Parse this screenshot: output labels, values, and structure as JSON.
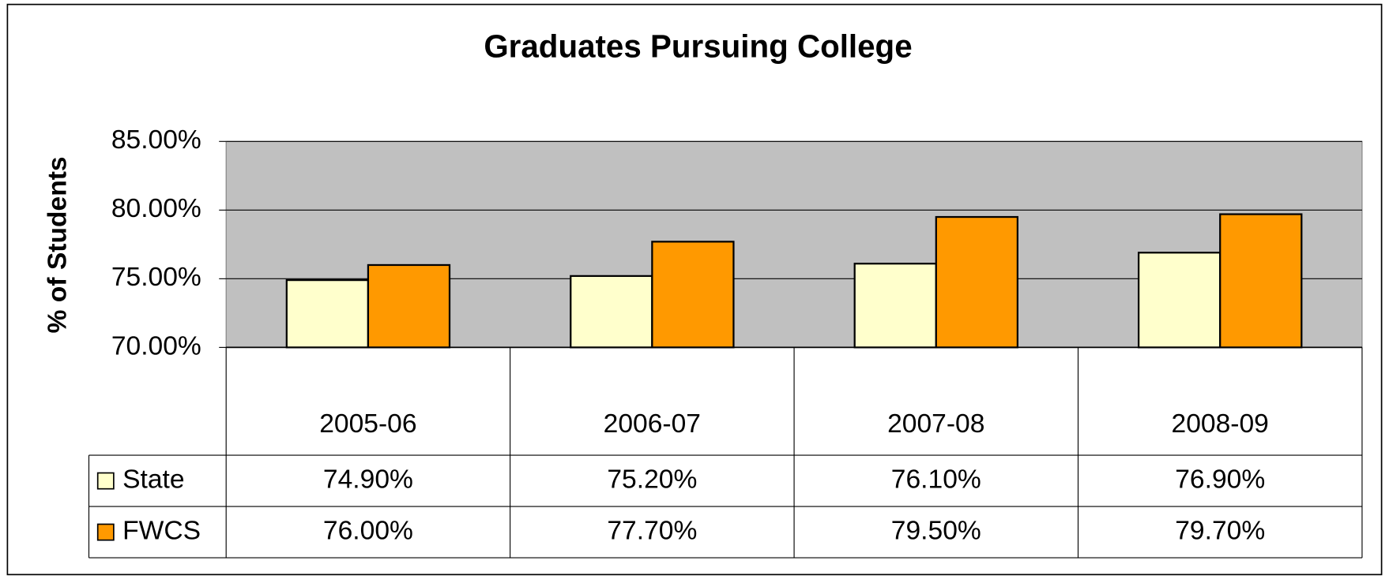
{
  "chart_data": {
    "type": "bar",
    "title": "Graduates Pursuing College",
    "y_label": "% of Students",
    "categories": [
      "2005-06",
      "2006-07",
      "2007-08",
      "2008-09"
    ],
    "series": [
      {
        "name": "State",
        "color": "#ffffcc",
        "values": [
          74.9,
          75.2,
          76.1,
          76.9
        ],
        "value_labels": [
          "74.90%",
          "75.20%",
          "76.10%",
          "76.90%"
        ]
      },
      {
        "name": "FWCS",
        "color": "#ff9900",
        "values": [
          76.0,
          77.7,
          79.5,
          79.7
        ],
        "value_labels": [
          "76.00%",
          "77.70%",
          "79.50%",
          "79.70%"
        ]
      }
    ],
    "ylim": [
      70,
      85
    ],
    "yticks": [
      {
        "value": 70,
        "label": "70.00%"
      },
      {
        "value": 75,
        "label": "75.00%"
      },
      {
        "value": 80,
        "label": "80.00%"
      },
      {
        "value": 85,
        "label": "85.00%"
      }
    ],
    "grid": true,
    "plot_background": "#c0c0c0"
  }
}
